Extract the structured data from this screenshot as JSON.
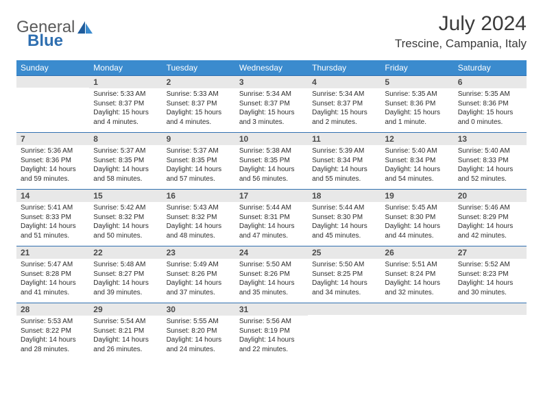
{
  "brand": {
    "text1": "General",
    "text2": "Blue"
  },
  "title": "July 2024",
  "location": "Trescine, Campania, Italy",
  "colors": {
    "header_bg": "#3b8bce",
    "band_bg": "#e8e8e8",
    "rule": "#2f6fb0",
    "text": "#2b2b2b"
  },
  "weekdays": [
    "Sunday",
    "Monday",
    "Tuesday",
    "Wednesday",
    "Thursday",
    "Friday",
    "Saturday"
  ],
  "weeks": [
    [
      null,
      {
        "n": "1",
        "sunrise": "Sunrise: 5:33 AM",
        "sunset": "Sunset: 8:37 PM",
        "daylight": "Daylight: 15 hours and 4 minutes."
      },
      {
        "n": "2",
        "sunrise": "Sunrise: 5:33 AM",
        "sunset": "Sunset: 8:37 PM",
        "daylight": "Daylight: 15 hours and 4 minutes."
      },
      {
        "n": "3",
        "sunrise": "Sunrise: 5:34 AM",
        "sunset": "Sunset: 8:37 PM",
        "daylight": "Daylight: 15 hours and 3 minutes."
      },
      {
        "n": "4",
        "sunrise": "Sunrise: 5:34 AM",
        "sunset": "Sunset: 8:37 PM",
        "daylight": "Daylight: 15 hours and 2 minutes."
      },
      {
        "n": "5",
        "sunrise": "Sunrise: 5:35 AM",
        "sunset": "Sunset: 8:36 PM",
        "daylight": "Daylight: 15 hours and 1 minute."
      },
      {
        "n": "6",
        "sunrise": "Sunrise: 5:35 AM",
        "sunset": "Sunset: 8:36 PM",
        "daylight": "Daylight: 15 hours and 0 minutes."
      }
    ],
    [
      {
        "n": "7",
        "sunrise": "Sunrise: 5:36 AM",
        "sunset": "Sunset: 8:36 PM",
        "daylight": "Daylight: 14 hours and 59 minutes."
      },
      {
        "n": "8",
        "sunrise": "Sunrise: 5:37 AM",
        "sunset": "Sunset: 8:35 PM",
        "daylight": "Daylight: 14 hours and 58 minutes."
      },
      {
        "n": "9",
        "sunrise": "Sunrise: 5:37 AM",
        "sunset": "Sunset: 8:35 PM",
        "daylight": "Daylight: 14 hours and 57 minutes."
      },
      {
        "n": "10",
        "sunrise": "Sunrise: 5:38 AM",
        "sunset": "Sunset: 8:35 PM",
        "daylight": "Daylight: 14 hours and 56 minutes."
      },
      {
        "n": "11",
        "sunrise": "Sunrise: 5:39 AM",
        "sunset": "Sunset: 8:34 PM",
        "daylight": "Daylight: 14 hours and 55 minutes."
      },
      {
        "n": "12",
        "sunrise": "Sunrise: 5:40 AM",
        "sunset": "Sunset: 8:34 PM",
        "daylight": "Daylight: 14 hours and 54 minutes."
      },
      {
        "n": "13",
        "sunrise": "Sunrise: 5:40 AM",
        "sunset": "Sunset: 8:33 PM",
        "daylight": "Daylight: 14 hours and 52 minutes."
      }
    ],
    [
      {
        "n": "14",
        "sunrise": "Sunrise: 5:41 AM",
        "sunset": "Sunset: 8:33 PM",
        "daylight": "Daylight: 14 hours and 51 minutes."
      },
      {
        "n": "15",
        "sunrise": "Sunrise: 5:42 AM",
        "sunset": "Sunset: 8:32 PM",
        "daylight": "Daylight: 14 hours and 50 minutes."
      },
      {
        "n": "16",
        "sunrise": "Sunrise: 5:43 AM",
        "sunset": "Sunset: 8:32 PM",
        "daylight": "Daylight: 14 hours and 48 minutes."
      },
      {
        "n": "17",
        "sunrise": "Sunrise: 5:44 AM",
        "sunset": "Sunset: 8:31 PM",
        "daylight": "Daylight: 14 hours and 47 minutes."
      },
      {
        "n": "18",
        "sunrise": "Sunrise: 5:44 AM",
        "sunset": "Sunset: 8:30 PM",
        "daylight": "Daylight: 14 hours and 45 minutes."
      },
      {
        "n": "19",
        "sunrise": "Sunrise: 5:45 AM",
        "sunset": "Sunset: 8:30 PM",
        "daylight": "Daylight: 14 hours and 44 minutes."
      },
      {
        "n": "20",
        "sunrise": "Sunrise: 5:46 AM",
        "sunset": "Sunset: 8:29 PM",
        "daylight": "Daylight: 14 hours and 42 minutes."
      }
    ],
    [
      {
        "n": "21",
        "sunrise": "Sunrise: 5:47 AM",
        "sunset": "Sunset: 8:28 PM",
        "daylight": "Daylight: 14 hours and 41 minutes."
      },
      {
        "n": "22",
        "sunrise": "Sunrise: 5:48 AM",
        "sunset": "Sunset: 8:27 PM",
        "daylight": "Daylight: 14 hours and 39 minutes."
      },
      {
        "n": "23",
        "sunrise": "Sunrise: 5:49 AM",
        "sunset": "Sunset: 8:26 PM",
        "daylight": "Daylight: 14 hours and 37 minutes."
      },
      {
        "n": "24",
        "sunrise": "Sunrise: 5:50 AM",
        "sunset": "Sunset: 8:26 PM",
        "daylight": "Daylight: 14 hours and 35 minutes."
      },
      {
        "n": "25",
        "sunrise": "Sunrise: 5:50 AM",
        "sunset": "Sunset: 8:25 PM",
        "daylight": "Daylight: 14 hours and 34 minutes."
      },
      {
        "n": "26",
        "sunrise": "Sunrise: 5:51 AM",
        "sunset": "Sunset: 8:24 PM",
        "daylight": "Daylight: 14 hours and 32 minutes."
      },
      {
        "n": "27",
        "sunrise": "Sunrise: 5:52 AM",
        "sunset": "Sunset: 8:23 PM",
        "daylight": "Daylight: 14 hours and 30 minutes."
      }
    ],
    [
      {
        "n": "28",
        "sunrise": "Sunrise: 5:53 AM",
        "sunset": "Sunset: 8:22 PM",
        "daylight": "Daylight: 14 hours and 28 minutes."
      },
      {
        "n": "29",
        "sunrise": "Sunrise: 5:54 AM",
        "sunset": "Sunset: 8:21 PM",
        "daylight": "Daylight: 14 hours and 26 minutes."
      },
      {
        "n": "30",
        "sunrise": "Sunrise: 5:55 AM",
        "sunset": "Sunset: 8:20 PM",
        "daylight": "Daylight: 14 hours and 24 minutes."
      },
      {
        "n": "31",
        "sunrise": "Sunrise: 5:56 AM",
        "sunset": "Sunset: 8:19 PM",
        "daylight": "Daylight: 14 hours and 22 minutes."
      },
      null,
      null,
      null
    ]
  ]
}
